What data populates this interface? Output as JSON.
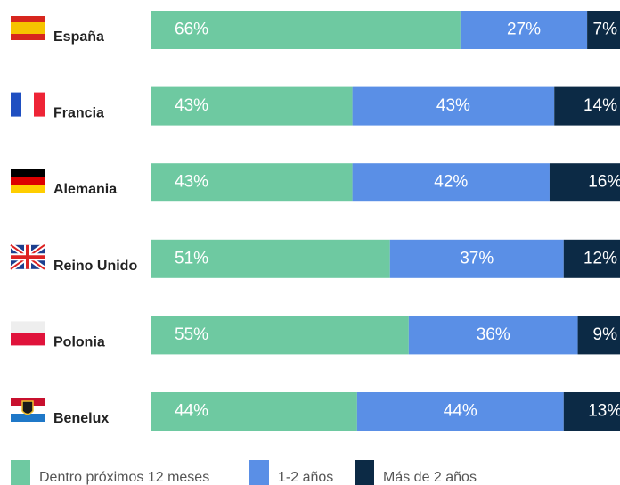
{
  "chart_data": {
    "type": "stacked-bar-horizontal",
    "categories": [
      "España",
      "Francia",
      "Alemania",
      "Reino Unido",
      "Polonia",
      "Benelux"
    ],
    "xlim": [
      0,
      100
    ],
    "series": [
      {
        "name": "Dentro próximos 12 meses",
        "color": "#6ec9a1",
        "values": [
          66,
          43,
          43,
          51,
          55,
          44
        ],
        "value_labels": [
          "66%",
          "43%",
          "43%",
          "51%",
          "55%",
          "44%"
        ]
      },
      {
        "name": "1-2 años",
        "color": "#5a8fe6",
        "values": [
          27,
          43,
          42,
          37,
          36,
          44
        ],
        "value_labels": [
          "27%",
          "43%",
          "42%",
          "37%",
          "36%",
          "44%"
        ]
      },
      {
        "name": "Más de 2 años",
        "color": "#0c2a45",
        "values": [
          7,
          14,
          16,
          12,
          9,
          13
        ],
        "value_labels": [
          "7%",
          "14%",
          "16%",
          "12%",
          "9%",
          "13%"
        ]
      }
    ]
  }
}
